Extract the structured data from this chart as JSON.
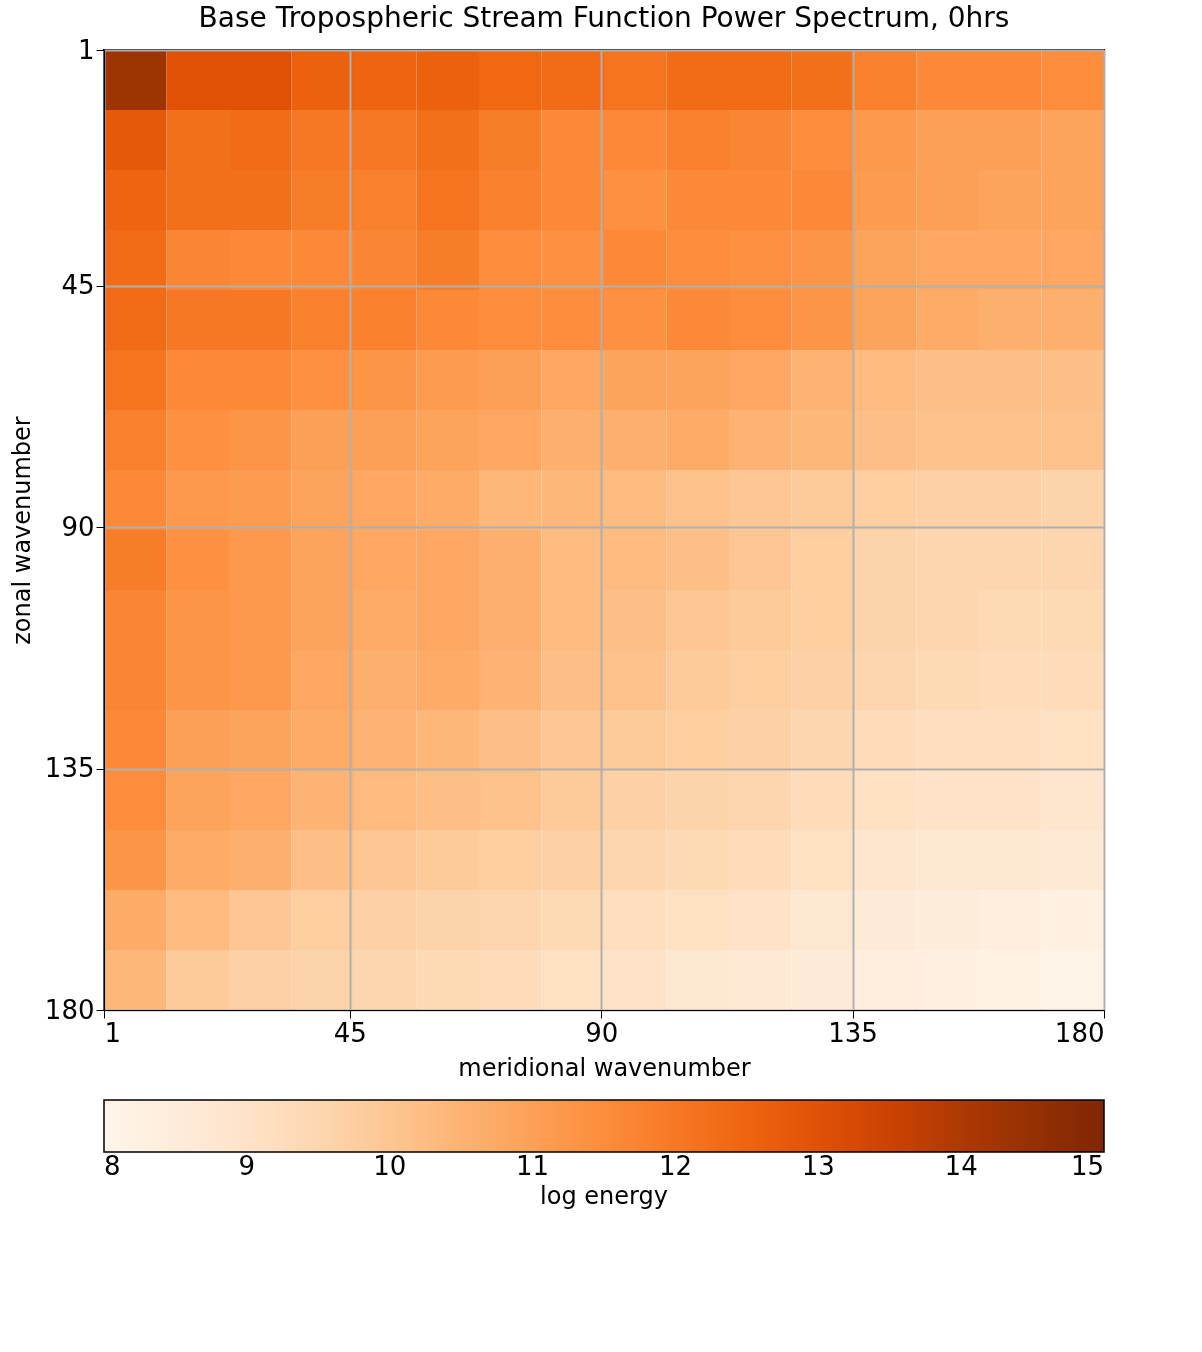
{
  "chart_data": {
    "type": "heatmap",
    "title": "Base Tropospheric Stream Function Power Spectrum, 0hrs",
    "xlabel": "meridional wavenumber",
    "ylabel": "zonal wavenumber",
    "clabel": "log energy",
    "xlim": [
      1,
      180
    ],
    "xticks": [
      1,
      45,
      90,
      135,
      180
    ],
    "ylim": [
      180,
      1
    ],
    "yticks": [
      1,
      45,
      90,
      135,
      180
    ],
    "grid": true,
    "clim": [
      8,
      15
    ],
    "cticks": [
      8,
      9,
      10,
      11,
      12,
      13,
      14,
      15
    ],
    "cells": [
      [
        14.3,
        13.0,
        13.0,
        12.6,
        12.5,
        12.6,
        12.4,
        12.3,
        12.1,
        12.3,
        12.3,
        12.2,
        11.8,
        11.6,
        11.6,
        11.5
      ],
      [
        12.8,
        12.2,
        12.3,
        12.0,
        12.0,
        12.2,
        11.9,
        11.6,
        11.6,
        11.8,
        11.7,
        11.5,
        11.2,
        11.0,
        11.0,
        10.9
      ],
      [
        12.5,
        12.2,
        12.2,
        11.9,
        11.8,
        12.1,
        11.8,
        11.6,
        11.4,
        11.6,
        11.6,
        11.6,
        11.1,
        11.0,
        10.9,
        10.9
      ],
      [
        12.3,
        11.7,
        11.6,
        11.6,
        11.7,
        11.9,
        11.5,
        11.4,
        11.6,
        11.5,
        11.4,
        11.3,
        10.9,
        10.8,
        10.8,
        10.8
      ],
      [
        12.3,
        12.0,
        12.0,
        11.8,
        11.8,
        11.6,
        11.5,
        11.5,
        11.4,
        11.6,
        11.5,
        11.3,
        10.9,
        10.7,
        10.6,
        10.6
      ],
      [
        12.1,
        11.6,
        11.6,
        11.4,
        11.3,
        11.1,
        11.0,
        10.8,
        10.9,
        10.9,
        10.8,
        10.5,
        10.3,
        10.2,
        10.2,
        10.2
      ],
      [
        11.8,
        11.4,
        11.3,
        11.0,
        11.0,
        10.9,
        10.8,
        10.6,
        10.6,
        10.7,
        10.5,
        10.4,
        10.2,
        10.1,
        10.1,
        10.1
      ],
      [
        11.6,
        11.2,
        11.1,
        10.9,
        10.8,
        10.7,
        10.4,
        10.4,
        10.3,
        10.1,
        10.0,
        9.9,
        9.8,
        9.7,
        9.7,
        9.6
      ],
      [
        11.9,
        11.4,
        11.2,
        10.9,
        10.8,
        10.8,
        10.6,
        10.3,
        10.3,
        10.2,
        10.0,
        9.8,
        9.6,
        9.5,
        9.5,
        9.5
      ],
      [
        11.7,
        11.3,
        11.2,
        10.9,
        10.7,
        10.8,
        10.6,
        10.3,
        10.2,
        10.0,
        9.9,
        9.8,
        9.6,
        9.5,
        9.4,
        9.4
      ],
      [
        11.7,
        11.3,
        11.2,
        10.8,
        10.6,
        10.7,
        10.5,
        10.2,
        10.1,
        9.9,
        9.8,
        9.7,
        9.5,
        9.4,
        9.3,
        9.3
      ],
      [
        11.6,
        11.0,
        10.9,
        10.7,
        10.5,
        10.4,
        10.2,
        10.0,
        9.9,
        9.8,
        9.7,
        9.5,
        9.3,
        9.2,
        9.2,
        9.1
      ],
      [
        11.5,
        10.9,
        10.8,
        10.5,
        10.3,
        10.2,
        10.1,
        9.9,
        9.7,
        9.6,
        9.5,
        9.3,
        9.1,
        9.0,
        9.0,
        8.9
      ],
      [
        11.3,
        10.7,
        10.6,
        10.2,
        10.0,
        9.9,
        9.8,
        9.7,
        9.5,
        9.4,
        9.3,
        9.1,
        8.9,
        8.8,
        8.8,
        8.7
      ],
      [
        10.7,
        10.3,
        10.0,
        9.8,
        9.7,
        9.6,
        9.5,
        9.4,
        9.2,
        9.1,
        9.0,
        8.8,
        8.6,
        8.5,
        8.4,
        8.3
      ],
      [
        10.4,
        9.9,
        9.7,
        9.6,
        9.5,
        9.4,
        9.3,
        9.1,
        9.0,
        8.8,
        8.7,
        8.6,
        8.4,
        8.3,
        8.2,
        8.1
      ]
    ]
  }
}
